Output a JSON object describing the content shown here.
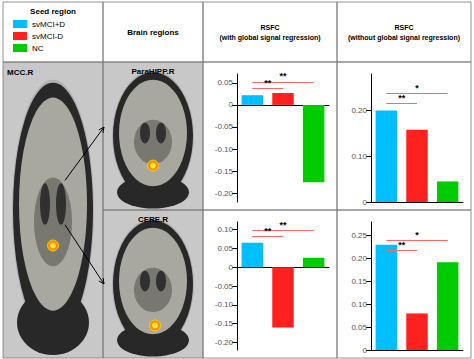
{
  "annotations": [
    "Seed region",
    "Brain regions",
    "MCC.R"
  ],
  "legend": "upper left",
  "chart_data": [
    {
      "type": "bar",
      "title": "RSFC\n(with global signal regression)",
      "subtitle": "ParaHIPP.R",
      "categories": [
        "svMCI+D",
        "svMCI-D",
        "NC"
      ],
      "values": [
        0.022,
        0.027,
        -0.175
      ],
      "colors": [
        "#00BFFF",
        "#FF2020",
        "#00CC00"
      ],
      "ylim": [
        -0.22,
        0.07
      ],
      "yticks": [
        {
          "value": -0.2,
          "label": "-0.20"
        },
        -0.15,
        {
          "value": -0.1,
          "label": "-0.10"
        },
        -0.05,
        0,
        0.05
      ],
      "grid": false,
      "tick_labels": "y",
      "annotations": [
        {
          "text": "**",
          "from": "svMCI+D",
          "to": "svMCI-D",
          "y": 0.037,
          "color": "#FF6666"
        },
        {
          "text": "**",
          "from": "svMCI+D",
          "to": "NC",
          "y": 0.052,
          "color": "#FF6666"
        }
      ]
    },
    {
      "type": "bar",
      "title": "RSFC\n(without global signal regression)",
      "categories": [
        "svMCI+D",
        "svMCI-D",
        "NC"
      ],
      "values": [
        0.2,
        0.158,
        0.045
      ],
      "colors": [
        "#00BFFF",
        "#FF2020",
        "#00CC00"
      ],
      "ylim": [
        0,
        0.28
      ],
      "yticks": [
        0,
        {
          "value": 0.1,
          "label": "0.10"
        },
        {
          "value": 0.2,
          "label": "0.20"
        }
      ],
      "grid": false,
      "tick_labels": "y",
      "annotations": [
        {
          "text": "**",
          "from": "svMCI+D",
          "to": "svMCI-D",
          "y": 0.216,
          "color": "#FF6666"
        },
        {
          "text": "*",
          "from": "svMCI+D",
          "to": "NC",
          "y": 0.238,
          "color": "#FF6666"
        }
      ]
    },
    {
      "type": "bar",
      "subtitle": "CERE.R",
      "categories": [
        "svMCI+D",
        "svMCI-D",
        "NC"
      ],
      "values": [
        0.065,
        -0.16,
        0.025
      ],
      "colors": [
        "#00BFFF",
        "#FF2020",
        "#00CC00"
      ],
      "ylim": [
        -0.22,
        0.12
      ],
      "yticks": [
        {
          "value": -0.2,
          "label": "-0.20"
        },
        -0.15,
        {
          "value": -0.1,
          "label": "-0.10"
        },
        -0.05,
        0,
        0.05,
        {
          "value": 0.1,
          "label": "0.10"
        }
      ],
      "grid": false,
      "tick_labels": "y",
      "annotations": [
        {
          "text": "**",
          "from": "svMCI+D",
          "to": "svMCI-D",
          "y": 0.082,
          "color": "#FF6666"
        },
        {
          "text": "**",
          "from": "svMCI+D",
          "to": "NC",
          "y": 0.098,
          "color": "#FF6666"
        }
      ]
    },
    {
      "type": "bar",
      "categories": [
        "svMCI+D",
        "svMCI-D",
        "NC"
      ],
      "values": [
        0.23,
        0.08,
        0.192
      ],
      "colors": [
        "#00BFFF",
        "#FF2020",
        "#00CC00"
      ],
      "ylim": [
        0,
        0.28
      ],
      "yticks": [
        0,
        0.05,
        {
          "value": 0.1,
          "label": "0.10"
        },
        0.15,
        {
          "value": 0.2,
          "label": "0.20"
        },
        0.25
      ],
      "grid": false,
      "tick_labels": "y",
      "annotations": [
        {
          "text": "**",
          "from": "svMCI+D",
          "to": "svMCI-D",
          "y": 0.218,
          "color": "#FF6666"
        },
        {
          "text": "*",
          "from": "svMCI+D",
          "to": "NC",
          "y": 0.24,
          "color": "#FF6666"
        }
      ]
    }
  ]
}
